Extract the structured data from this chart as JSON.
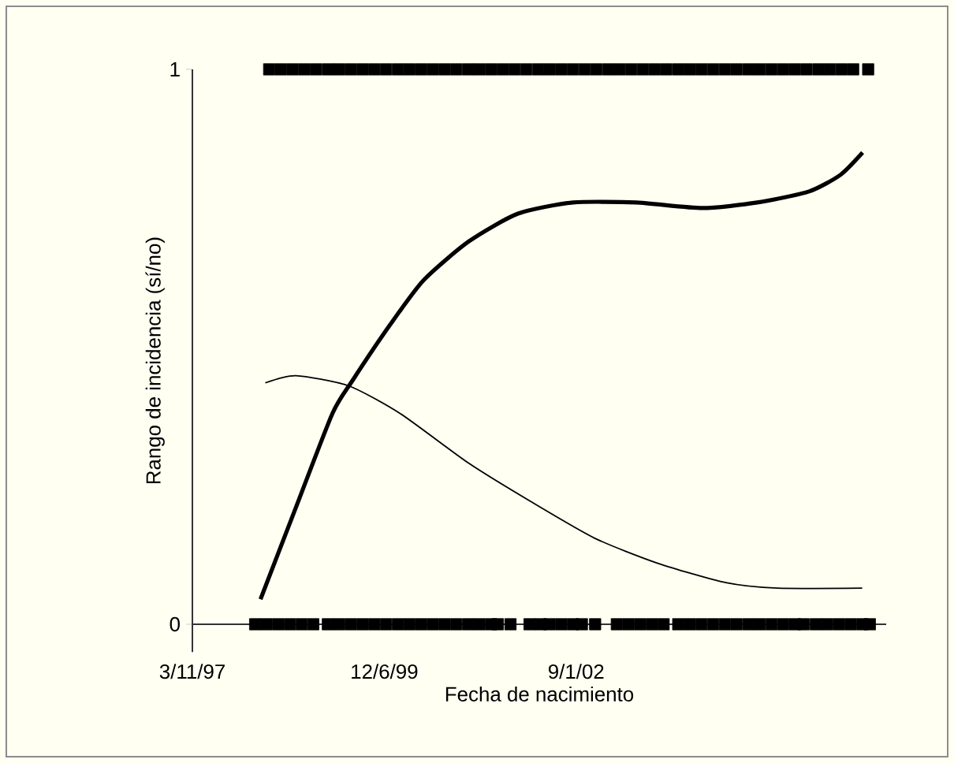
{
  "chart_data": {
    "type": "line",
    "xlabel": "Fecha de nacimiento",
    "ylabel": "Rango de incidencia (sí/no)",
    "xlim": [
      "1997-03-11",
      "2007-02-03"
    ],
    "ylim": [
      -0.05,
      1
    ],
    "xticks": [
      {
        "value": "1997-03-11",
        "label": "3/11/97"
      },
      {
        "value": "1999-12-06",
        "label": "12/6/99"
      },
      {
        "value": "2002-09-01",
        "label": "9/1/02"
      }
    ],
    "yticks": [
      0,
      1
    ],
    "grid": false,
    "series": [
      {
        "color": "#000000",
        "x": [
          "1998-03-01",
          "1998-09-01",
          "1999-03-11",
          "1999-06-25",
          "2000-01-06",
          "2000-06-28",
          "2001-02-19",
          "2001-11-02",
          "2002-08-16",
          "2003-07-10",
          "2004-06-19",
          "2005-04-02",
          "2005-12-28",
          "2006-06-10",
          "2006-10-03"
        ],
        "values": [
          0.045,
          0.21,
          0.38,
          0.44,
          0.54,
          0.62,
          0.69,
          0.74,
          0.76,
          0.76,
          0.75,
          0.76,
          0.78,
          0.81,
          0.85
        ]
      },
      {
        "color": "#000000",
        "x": [
          "1998-03-26",
          "1998-09-01",
          "1999-06-01",
          "2000-02-26",
          "2001-02-19",
          "2002-01-13",
          "2002-12-07",
          "2003-10-31",
          "2004-10-20",
          "2005-07-17",
          "2006-10-01"
        ],
        "values": [
          0.435,
          0.448,
          0.43,
          0.38,
          0.29,
          0.22,
          0.155,
          0.11,
          0.075,
          0.065,
          0.065
        ]
      },
      {
        "type": "scatter",
        "color": "#000000",
        "marker": "square",
        "x": [
          "1998-02-01",
          "1998-04-01",
          "1998-06-01",
          "1998-08-01",
          "1998-10-01",
          "1998-12-01",
          "1999-02-15",
          "1999-04-15",
          "1999-06-15",
          "1999-08-15",
          "1999-10-15",
          "1999-12-15",
          "2000-02-15",
          "2000-04-15",
          "2000-06-15",
          "2000-08-15",
          "2000-10-15",
          "2000-12-15",
          "2001-02-15",
          "2001-04-15",
          "2001-06-15",
          "2001-07-20",
          "2001-09-24",
          "2002-01-01",
          "2002-02-28",
          "2002-04-15",
          "2002-06-15",
          "2002-08-15",
          "2002-10-01",
          "2002-12-09",
          "2003-04-01",
          "2003-06-01",
          "2003-08-01",
          "2003-10-01",
          "2003-12-01",
          "2004-02-15",
          "2004-04-15",
          "2004-06-15",
          "2004-08-15",
          "2004-10-15",
          "2004-12-15",
          "2005-02-15",
          "2005-04-15",
          "2005-06-15",
          "2005-08-15",
          "2005-10-15",
          "2005-11-30",
          "2006-02-01",
          "2006-04-01",
          "2006-06-01",
          "2006-08-01",
          "2006-10-01",
          "2006-11-10"
        ],
        "values": [
          0,
          0,
          0,
          0,
          0,
          0,
          0,
          0,
          0,
          0,
          0,
          0,
          0,
          0,
          0,
          0,
          0,
          0,
          0,
          0,
          0,
          0,
          0,
          0,
          0,
          0,
          0,
          0,
          0,
          0,
          0,
          0,
          0,
          0,
          0,
          0,
          0,
          0,
          0,
          0,
          0,
          0,
          0,
          0,
          0,
          0,
          0,
          0,
          0,
          0,
          0,
          0,
          0
        ]
      },
      {
        "type": "scatter",
        "color": "#000000",
        "marker": "square",
        "x": [
          "1998-04-15",
          "1998-06-15",
          "1998-08-15",
          "1998-10-15",
          "1998-12-15",
          "1999-02-15",
          "1999-04-15",
          "1999-06-15",
          "1999-08-15",
          "1999-10-15",
          "1999-12-15",
          "2000-02-15",
          "2000-04-15",
          "2000-06-15",
          "2000-08-15",
          "2000-10-15",
          "2000-12-15",
          "2001-02-15",
          "2001-04-15",
          "2001-06-15",
          "2001-08-15",
          "2001-10-15",
          "2001-12-15",
          "2002-02-15",
          "2002-04-15",
          "2002-06-15",
          "2002-08-15",
          "2002-10-15",
          "2002-12-15",
          "2003-02-15",
          "2003-04-15",
          "2003-06-15",
          "2003-08-15",
          "2003-10-15",
          "2003-12-15",
          "2004-02-15",
          "2004-04-15",
          "2004-06-15",
          "2004-08-15",
          "2004-10-15",
          "2004-12-15",
          "2005-02-15",
          "2005-04-15",
          "2005-06-15",
          "2005-08-15",
          "2005-10-15",
          "2005-12-15",
          "2006-02-15",
          "2006-04-15",
          "2006-06-15",
          "2006-08-15",
          "2006-11-01"
        ],
        "values": [
          1,
          1,
          1,
          1,
          1,
          1,
          1,
          1,
          1,
          1,
          1,
          1,
          1,
          1,
          1,
          1,
          1,
          1,
          1,
          1,
          1,
          1,
          1,
          1,
          1,
          1,
          1,
          1,
          1,
          1,
          1,
          1,
          1,
          1,
          1,
          1,
          1,
          1,
          1,
          1,
          1,
          1,
          1,
          1,
          1,
          1,
          1,
          1,
          1,
          1,
          1,
          1
        ]
      }
    ]
  }
}
